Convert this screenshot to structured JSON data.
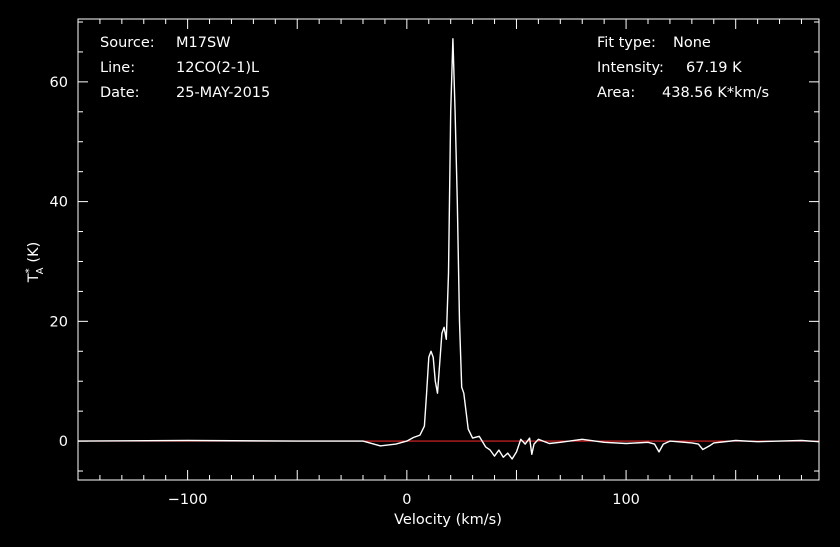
{
  "header": {
    "source_label": "Source:",
    "source_value": "M17SW",
    "line_label": "Line:",
    "line_value": "12CO(2-1)L",
    "date_label": "Date:",
    "date_value": "25-MAY-2015",
    "fit_label": "Fit type:",
    "fit_value": "None",
    "intensity_label": "Intensity:",
    "intensity_value": "67.19 K",
    "area_label": "Area:",
    "area_value": "438.56 K*km/s"
  },
  "chart_data": {
    "type": "line",
    "xlabel": "Velocity (km/s)",
    "ylabel_main": "T",
    "ylabel_sup": "*",
    "ylabel_sub": "A",
    "ylabel_unit": "(K)",
    "xlim": [
      -150,
      188
    ],
    "ylim": [
      -6.5,
      70.5
    ],
    "x_ticks": [
      -100,
      0,
      100
    ],
    "x_tick_labels": [
      "−100",
      "0",
      "100"
    ],
    "y_ticks": [
      0,
      20,
      40,
      60
    ],
    "y_tick_labels": [
      "0",
      "20",
      "40",
      "60"
    ],
    "baseline": 0,
    "colors": {
      "spectrum": "#ffffff",
      "baseline": "#e0262a",
      "axes": "#ffffff",
      "background": "#000000"
    },
    "series": [
      {
        "x": [
          -150,
          -100,
          -50,
          -20,
          -12,
          -5,
          0,
          3,
          6,
          8,
          9,
          10,
          11,
          12,
          13,
          14,
          15,
          16,
          17,
          18,
          19,
          20,
          21,
          22,
          23,
          24,
          25,
          26,
          27,
          28,
          30,
          33,
          36,
          38,
          40,
          42,
          44,
          46,
          48,
          50,
          52,
          54,
          56,
          57,
          58,
          60,
          65,
          70,
          80,
          90,
          100,
          110,
          113,
          115,
          117,
          120,
          130,
          133,
          135,
          138,
          140,
          150,
          160,
          170,
          180,
          188
        ],
        "y": [
          0,
          0.1,
          0,
          0,
          -0.8,
          -0.5,
          0,
          0.6,
          1.0,
          2.5,
          8,
          14,
          15,
          14,
          10,
          8,
          13,
          18,
          19,
          17,
          28,
          55,
          67.2,
          55,
          40,
          20,
          9,
          8,
          5,
          2,
          0.5,
          0.8,
          -1.0,
          -1.5,
          -2.5,
          -1.5,
          -2.7,
          -2.0,
          -3.0,
          -1.8,
          0.3,
          -0.5,
          0.5,
          -2.2,
          -0.5,
          0.3,
          -0.4,
          -0.2,
          0.3,
          -0.2,
          -0.4,
          -0.2,
          -0.5,
          -1.8,
          -0.5,
          0,
          -0.3,
          -0.5,
          -1.4,
          -0.8,
          -0.3,
          0.1,
          -0.1,
          0,
          0.1,
          -0.1
        ]
      }
    ]
  }
}
